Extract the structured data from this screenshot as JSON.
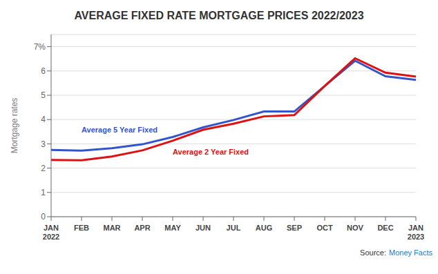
{
  "chart_data": {
    "type": "line",
    "title": "AVERAGE FIXED RATE MORTGAGE PRICES 2022/2023",
    "y_label": "Mortgage rates",
    "categories": [
      "JAN\n2022",
      "FEB",
      "MAR",
      "APR",
      "MAY",
      "JUN",
      "JUL",
      "AUG",
      "SEP",
      "OCT",
      "NOV",
      "DEC",
      "JAN\n2023"
    ],
    "series": [
      {
        "name": "Average 5 Year Fixed",
        "color": "#3355cc",
        "values": [
          2.75,
          2.72,
          2.82,
          2.98,
          3.28,
          3.68,
          3.98,
          4.33,
          4.33,
          5.38,
          6.42,
          5.78,
          5.63
        ]
      },
      {
        "name": "Average 2 Year Fixed",
        "color": "#dd1111",
        "values": [
          2.34,
          2.32,
          2.48,
          2.73,
          3.13,
          3.58,
          3.83,
          4.13,
          4.18,
          5.38,
          6.52,
          5.93,
          5.77
        ]
      }
    ],
    "ylim": [
      0,
      7.5
    ],
    "yticks": [
      0,
      1,
      2,
      3,
      4,
      5,
      6,
      {
        "value": 7,
        "label": "7%"
      }
    ],
    "grid": true,
    "annotations": [
      {
        "text": "Source:"
      },
      {
        "text": "Money Facts",
        "color": "#1a7abf"
      }
    ]
  }
}
